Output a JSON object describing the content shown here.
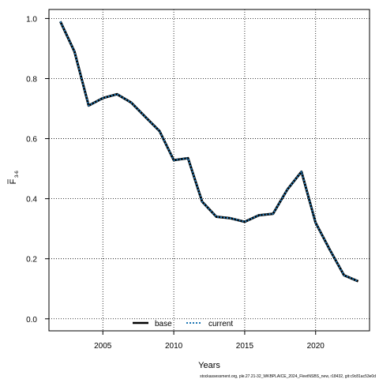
{
  "chart_data": {
    "type": "line",
    "xlabel": "Years",
    "ylabel_main": "F",
    "ylabel_sub": "3-6",
    "xticks": [
      2005,
      2010,
      2015,
      2020
    ],
    "yticks": [
      "0.0",
      "0.2",
      "0.4",
      "0.6",
      "0.8",
      "1.0"
    ],
    "xlim": [
      2001.2,
      2023.8
    ],
    "ylim": [
      -0.04,
      1.03
    ],
    "grid": true,
    "legend_position": "bottom-center",
    "x": [
      2002,
      2003,
      2004,
      2005,
      2006,
      2007,
      2008,
      2009,
      2010,
      2011,
      2012,
      2013,
      2014,
      2015,
      2016,
      2017,
      2018,
      2019,
      2020,
      2021,
      2022,
      2023
    ],
    "series": [
      {
        "name": "base",
        "color": "#000000",
        "style": "solid",
        "values": [
          0.99,
          0.89,
          0.71,
          0.735,
          0.748,
          0.72,
          0.672,
          0.625,
          0.528,
          0.535,
          0.39,
          0.34,
          0.335,
          0.323,
          0.345,
          0.35,
          0.43,
          0.49,
          0.32,
          0.23,
          0.145,
          0.125
        ]
      },
      {
        "name": "current",
        "color": "#1f77b4",
        "style": "dashed",
        "values": [
          0.99,
          0.89,
          0.71,
          0.735,
          0.748,
          0.72,
          0.672,
          0.625,
          0.528,
          0.535,
          0.39,
          0.34,
          0.335,
          0.323,
          0.345,
          0.35,
          0.43,
          0.49,
          0.32,
          0.23,
          0.145,
          0.125
        ]
      }
    ]
  },
  "footer_text": "stockassessment.org, ple.27.21-32_WKBPLAICE_2024_FleetNSBS_new, r18432, git:c9c81ac53e0d"
}
